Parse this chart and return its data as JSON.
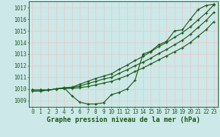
{
  "xlabel": "Graphe pression niveau de la mer (hPa)",
  "x": [
    0,
    1,
    2,
    3,
    4,
    5,
    6,
    7,
    8,
    9,
    10,
    11,
    12,
    13,
    14,
    15,
    16,
    17,
    18,
    19,
    20,
    21,
    22,
    23
  ],
  "line_wavy": [
    1009.8,
    1009.8,
    1009.9,
    1010.0,
    1010.1,
    1009.4,
    1008.85,
    1008.7,
    1008.7,
    1008.8,
    1009.5,
    1009.7,
    1010.0,
    1010.75,
    1013.0,
    1013.25,
    1013.8,
    1014.1,
    1015.0,
    1015.1,
    1016.0,
    1016.85,
    1017.2,
    1017.3
  ],
  "line_a": [
    1009.9,
    1009.9,
    1009.9,
    1010.0,
    1010.05,
    1010.05,
    1010.1,
    1010.2,
    1010.35,
    1010.5,
    1010.65,
    1010.9,
    1011.15,
    1011.5,
    1011.8,
    1012.15,
    1012.5,
    1012.85,
    1013.2,
    1013.55,
    1014.0,
    1014.55,
    1015.1,
    1015.8
  ],
  "line_b": [
    1009.9,
    1009.9,
    1009.9,
    1010.0,
    1010.05,
    1010.1,
    1010.25,
    1010.45,
    1010.65,
    1010.85,
    1011.0,
    1011.35,
    1011.65,
    1012.0,
    1012.3,
    1012.65,
    1013.05,
    1013.4,
    1013.8,
    1014.2,
    1014.7,
    1015.3,
    1015.9,
    1016.6
  ],
  "line_c": [
    1009.9,
    1009.9,
    1009.9,
    1010.0,
    1010.1,
    1010.15,
    1010.4,
    1010.65,
    1010.9,
    1011.1,
    1011.3,
    1011.7,
    1012.05,
    1012.45,
    1012.8,
    1013.2,
    1013.65,
    1014.0,
    1014.45,
    1014.85,
    1015.35,
    1015.95,
    1016.55,
    1017.25
  ],
  "ylim": [
    1008.45,
    1017.55
  ],
  "yticks": [
    1009,
    1010,
    1011,
    1012,
    1013,
    1014,
    1015,
    1016,
    1017
  ],
  "background_color": "#cce8e8",
  "grid_color": "#b0d0d0",
  "line_color": "#1a5c1a",
  "title_color": "#1a5c1a",
  "title_fontsize": 7.0,
  "tick_fontsize": 5.5
}
